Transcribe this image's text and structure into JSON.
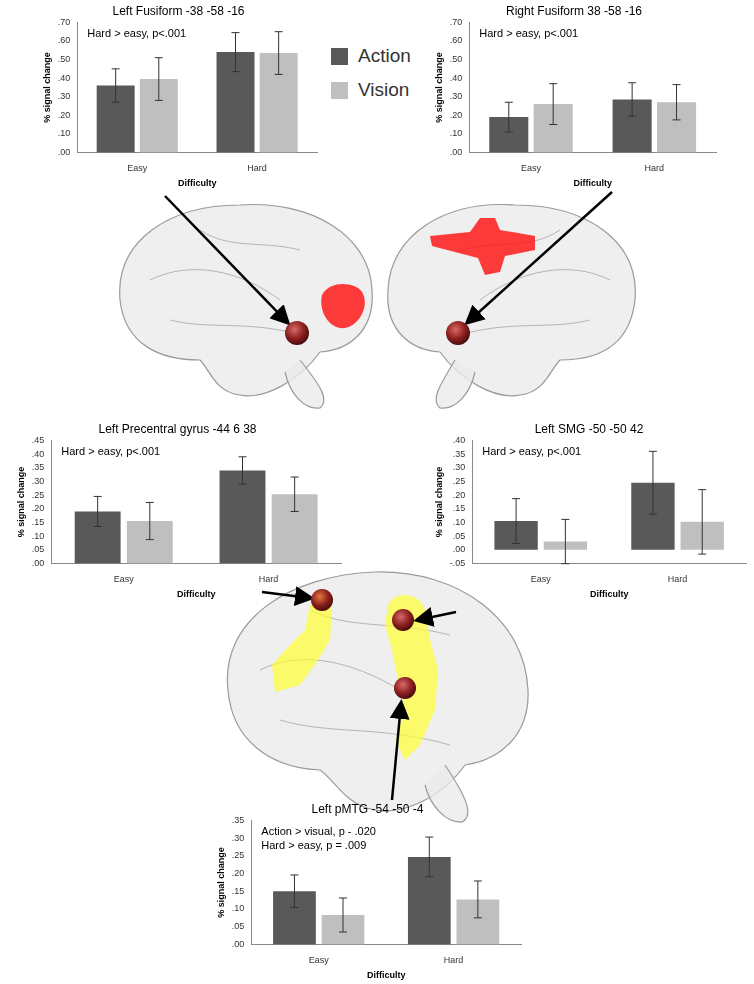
{
  "chart_data": [
    {
      "type": "bar",
      "title": "Left Fusiform -38 -58 -16",
      "annotations": [
        "Hard > easy, p<.001"
      ],
      "x_label": "Difficulty",
      "y_label": "% signal change",
      "categories": [
        "Easy",
        "Hard"
      ],
      "series": [
        {
          "name": "Action",
          "color": "#595959",
          "values": [
            0.36,
            0.54
          ],
          "errors": [
            0.09,
            0.105
          ]
        },
        {
          "name": "Vision",
          "color": "#bfbfbf",
          "values": [
            0.395,
            0.535
          ],
          "errors": [
            0.115,
            0.115
          ]
        }
      ],
      "ylim": [
        0,
        0.7
      ],
      "yticks": [
        {
          "value": 0,
          "label": ".00"
        },
        {
          "value": 0.1,
          "label": ".10"
        },
        {
          "value": 0.2,
          "label": ".20"
        },
        {
          "value": 0.3,
          "label": ".30"
        },
        {
          "value": 0.4,
          "label": ".40"
        },
        {
          "value": 0.5,
          "label": ".50"
        },
        {
          "value": 0.6,
          "label": ".60"
        },
        {
          "value": 0.7,
          "label": ".70"
        }
      ],
      "grid": false,
      "legend": "right"
    },
    {
      "type": "bar",
      "title": "Right Fusiform 38 -58 -16",
      "annotations": [
        "Hard > easy, p<.001"
      ],
      "x_label": "Difficulty",
      "y_label": "% signal change",
      "categories": [
        "Easy",
        "Hard"
      ],
      "series": [
        {
          "name": "Action",
          "color": "#595959",
          "values": [
            0.19,
            0.285
          ],
          "errors": [
            0.08,
            0.09
          ]
        },
        {
          "name": "Vision",
          "color": "#bfbfbf",
          "values": [
            0.26,
            0.27
          ],
          "errors": [
            0.11,
            0.095
          ]
        }
      ],
      "ylim": [
        0,
        0.7
      ],
      "yticks": [
        {
          "value": 0,
          "label": ".00"
        },
        {
          "value": 0.1,
          "label": ".10"
        },
        {
          "value": 0.2,
          "label": ".20"
        },
        {
          "value": 0.3,
          "label": ".30"
        },
        {
          "value": 0.4,
          "label": ".40"
        },
        {
          "value": 0.5,
          "label": ".50"
        },
        {
          "value": 0.6,
          "label": ".60"
        },
        {
          "value": 0.7,
          "label": ".70"
        }
      ],
      "grid": false
    },
    {
      "type": "bar",
      "title": "Left Precentral gyrus -44 6 38",
      "annotations": [
        "Hard > easy, p<.001"
      ],
      "x_label": "Difficulty",
      "y_label": "% signal change",
      "categories": [
        "Easy",
        "Hard"
      ],
      "series": [
        {
          "name": "Action",
          "color": "#595959",
          "values": [
            0.19,
            0.34
          ],
          "errors": [
            0.055,
            0.05
          ]
        },
        {
          "name": "Vision",
          "color": "#bfbfbf",
          "values": [
            0.155,
            0.253
          ],
          "errors": [
            0.068,
            0.063
          ]
        }
      ],
      "ylim": [
        0,
        0.45
      ],
      "yticks": [
        {
          "value": 0,
          "label": ".00"
        },
        {
          "value": 0.05,
          "label": ".05"
        },
        {
          "value": 0.1,
          "label": ".10"
        },
        {
          "value": 0.15,
          "label": ".15"
        },
        {
          "value": 0.2,
          "label": ".20"
        },
        {
          "value": 0.25,
          "label": ".25"
        },
        {
          "value": 0.3,
          "label": ".30"
        },
        {
          "value": 0.35,
          "label": ".35"
        },
        {
          "value": 0.4,
          "label": ".40"
        },
        {
          "value": 0.45,
          "label": ".45"
        }
      ],
      "grid": false
    },
    {
      "type": "bar",
      "title": "Left SMG -50 -50 42",
      "annotations": [
        "Hard > easy, p<.001"
      ],
      "x_label": "Difficulty",
      "y_label": "% signal change",
      "categories": [
        "Easy",
        "Hard"
      ],
      "series": [
        {
          "name": "Action",
          "color": "#595959",
          "values": [
            0.105,
            0.245
          ],
          "errors": [
            0.082,
            0.115
          ]
        },
        {
          "name": "Vision",
          "color": "#bfbfbf",
          "values": [
            0.03,
            0.102
          ],
          "errors": [
            0.081,
            0.118
          ]
        }
      ],
      "ylim": [
        -0.05,
        0.4
      ],
      "yticks": [
        {
          "value": -0.05,
          "label": "-.05"
        },
        {
          "value": 0,
          "label": ".00"
        },
        {
          "value": 0.05,
          "label": ".05"
        },
        {
          "value": 0.1,
          "label": ".10"
        },
        {
          "value": 0.15,
          "label": ".15"
        },
        {
          "value": 0.2,
          "label": ".20"
        },
        {
          "value": 0.25,
          "label": ".25"
        },
        {
          "value": 0.3,
          "label": ".30"
        },
        {
          "value": 0.35,
          "label": ".35"
        },
        {
          "value": 0.4,
          "label": ".40"
        }
      ],
      "grid": false
    },
    {
      "type": "bar",
      "title": "Left pMTG -54 -50 -4",
      "annotations": [
        "Action > visual, p - .020",
        "Hard > easy, p = .009"
      ],
      "x_label": "Difficulty",
      "y_label": "% signal change",
      "categories": [
        "Easy",
        "Hard"
      ],
      "series": [
        {
          "name": "Action",
          "color": "#595959",
          "values": [
            0.15,
            0.247
          ],
          "errors": [
            0.046,
            0.056
          ]
        },
        {
          "name": "Vision",
          "color": "#bfbfbf",
          "values": [
            0.083,
            0.127
          ],
          "errors": [
            0.048,
            0.052
          ]
        }
      ],
      "ylim": [
        0,
        0.35
      ],
      "yticks": [
        {
          "value": 0,
          "label": ".00"
        },
        {
          "value": 0.05,
          "label": ".05"
        },
        {
          "value": 0.1,
          "label": ".10"
        },
        {
          "value": 0.15,
          "label": ".15"
        },
        {
          "value": 0.2,
          "label": ".20"
        },
        {
          "value": 0.25,
          "label": ".25"
        },
        {
          "value": 0.3,
          "label": ".30"
        },
        {
          "value": 0.35,
          "label": ".35"
        }
      ],
      "grid": false
    }
  ]
}
